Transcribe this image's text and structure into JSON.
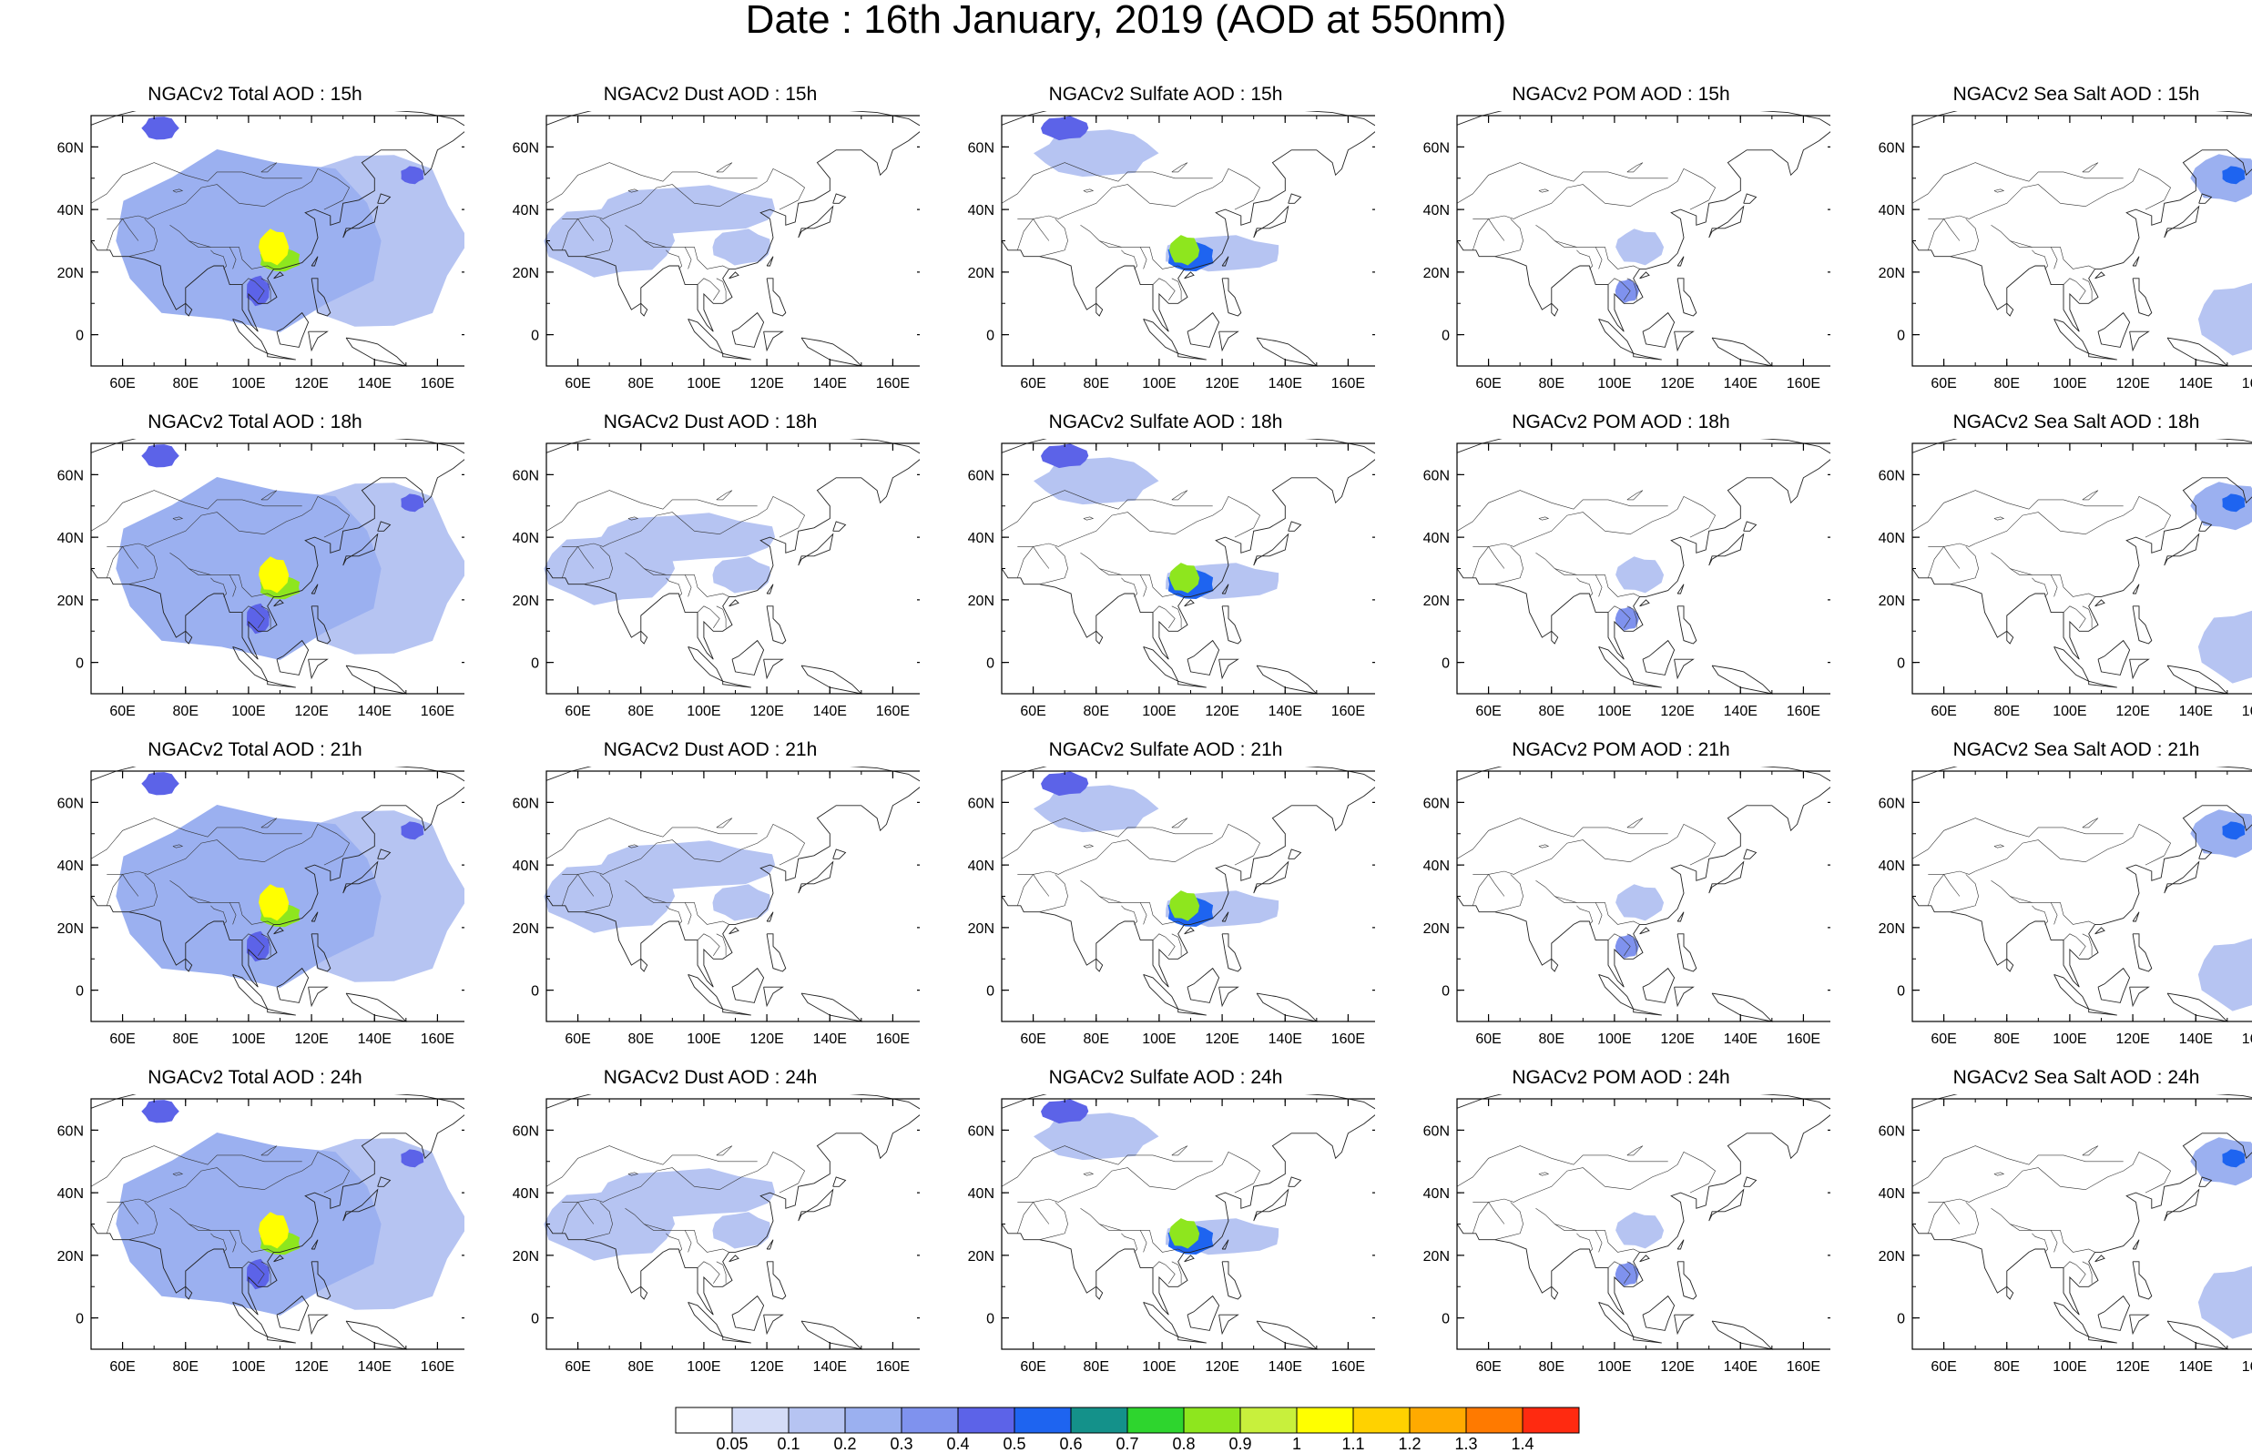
{
  "figure": {
    "title": "Date : 16th January, 2019 (AOD at 550nm)"
  },
  "panels": [
    {
      "title": "NGACv2 Total AOD : 15h",
      "species": "total",
      "hour": "15h"
    },
    {
      "title": "NGACv2 Dust AOD : 15h",
      "species": "dust",
      "hour": "15h"
    },
    {
      "title": "NGACv2 Sulfate AOD : 15h",
      "species": "sulfate",
      "hour": "15h"
    },
    {
      "title": "NGACv2 POM AOD : 15h",
      "species": "pom",
      "hour": "15h"
    },
    {
      "title": "NGACv2 Sea Salt AOD : 15h",
      "species": "seasalt",
      "hour": "15h"
    },
    {
      "title": "NGACv2 Total AOD : 18h",
      "species": "total",
      "hour": "18h"
    },
    {
      "title": "NGACv2 Dust AOD : 18h",
      "species": "dust",
      "hour": "18h"
    },
    {
      "title": "NGACv2 Sulfate AOD : 18h",
      "species": "sulfate",
      "hour": "18h"
    },
    {
      "title": "NGACv2 POM AOD : 18h",
      "species": "pom",
      "hour": "18h"
    },
    {
      "title": "NGACv2 Sea Salt AOD : 18h",
      "species": "seasalt",
      "hour": "18h"
    },
    {
      "title": "NGACv2 Total AOD : 21h",
      "species": "total",
      "hour": "21h"
    },
    {
      "title": "NGACv2 Dust AOD : 21h",
      "species": "dust",
      "hour": "21h"
    },
    {
      "title": "NGACv2 Sulfate AOD : 21h",
      "species": "sulfate",
      "hour": "21h"
    },
    {
      "title": "NGACv2 POM AOD : 21h",
      "species": "pom",
      "hour": "21h"
    },
    {
      "title": "NGACv2 Sea Salt AOD : 21h",
      "species": "seasalt",
      "hour": "21h"
    },
    {
      "title": "NGACv2 Total AOD : 24h",
      "species": "total",
      "hour": "24h"
    },
    {
      "title": "NGACv2 Dust AOD : 24h",
      "species": "dust",
      "hour": "24h"
    },
    {
      "title": "NGACv2 Sulfate AOD : 24h",
      "species": "sulfate",
      "hour": "24h"
    },
    {
      "title": "NGACv2 POM AOD : 24h",
      "species": "pom",
      "hour": "24h"
    },
    {
      "title": "NGACv2 Sea Salt  AOD : 24h",
      "species": "seasalt",
      "hour": "24h"
    }
  ],
  "chart_data": {
    "type": "heatmap",
    "title": "Date : 16th January, 2019 (AOD at 550nm)",
    "x_ticks": [
      "60E",
      "80E",
      "100E",
      "120E",
      "140E",
      "160E"
    ],
    "x_tick_values": [
      60,
      80,
      100,
      120,
      140,
      160
    ],
    "y_ticks": [
      "60N",
      "40N",
      "20N",
      "0"
    ],
    "y_tick_values": [
      60,
      40,
      20,
      0
    ],
    "xlim": [
      50,
      170
    ],
    "ylim": [
      -10,
      70
    ],
    "colorbar": {
      "levels": [
        "0.05",
        "0.1",
        "0.2",
        "0.3",
        "0.4",
        "0.5",
        "0.6",
        "0.7",
        "0.8",
        "0.9",
        "1",
        "1.1",
        "1.2",
        "1.3",
        "1.4"
      ],
      "colors": [
        "#ffffff",
        "#d4dcf7",
        "#b6c4f2",
        "#9bb0f0",
        "#7f92ee",
        "#5c63e8",
        "#1e64f0",
        "#14918a",
        "#2ed52e",
        "#8ee61e",
        "#c8f03c",
        "#ffff00",
        "#ffd200",
        "#ffaa00",
        "#ff7a00",
        "#ff2a10"
      ]
    },
    "features": {
      "total": [
        {
          "lon": 108,
          "lat": 28,
          "v": 1.05,
          "rx": 5,
          "ry": 6
        },
        {
          "lon": 110,
          "lat": 24,
          "v": 0.85,
          "rx": 7,
          "ry": 4
        },
        {
          "lon": 103,
          "lat": 14,
          "v": 0.45,
          "rx": 4,
          "ry": 5
        },
        {
          "lon": 72,
          "lat": 66,
          "v": 0.45,
          "rx": 6,
          "ry": 4
        },
        {
          "lon": 152,
          "lat": 51,
          "v": 0.4,
          "rx": 4,
          "ry": 3
        },
        {
          "lon": 100,
          "lat": 30,
          "v": 0.2,
          "rx": 45,
          "ry": 30
        },
        {
          "lon": 140,
          "lat": 30,
          "v": 0.15,
          "rx": 30,
          "ry": 30
        }
      ],
      "dust": [
        {
          "lon": 70,
          "lat": 30,
          "v": 0.15,
          "rx": 22,
          "ry": 12
        },
        {
          "lon": 95,
          "lat": 40,
          "v": 0.15,
          "rx": 30,
          "ry": 8
        },
        {
          "lon": 112,
          "lat": 28,
          "v": 0.12,
          "rx": 10,
          "ry": 6
        }
      ],
      "sulfate": [
        {
          "lon": 108,
          "lat": 27,
          "v": 0.8,
          "rx": 5,
          "ry": 5
        },
        {
          "lon": 110,
          "lat": 25,
          "v": 0.55,
          "rx": 8,
          "ry": 5
        },
        {
          "lon": 70,
          "lat": 66,
          "v": 0.4,
          "rx": 8,
          "ry": 4
        },
        {
          "lon": 120,
          "lat": 26,
          "v": 0.15,
          "rx": 20,
          "ry": 6
        },
        {
          "lon": 80,
          "lat": 58,
          "v": 0.15,
          "rx": 20,
          "ry": 8
        }
      ],
      "pom": [
        {
          "lon": 104,
          "lat": 14,
          "v": 0.3,
          "rx": 4,
          "ry": 4
        },
        {
          "lon": 108,
          "lat": 28,
          "v": 0.15,
          "rx": 8,
          "ry": 6
        }
      ],
      "seasalt": [
        {
          "lon": 152,
          "lat": 51,
          "v": 0.5,
          "rx": 4,
          "ry": 3
        },
        {
          "lon": 150,
          "lat": 50,
          "v": 0.2,
          "rx": 12,
          "ry": 8
        },
        {
          "lon": 155,
          "lat": 5,
          "v": 0.12,
          "rx": 15,
          "ry": 12
        }
      ]
    }
  }
}
